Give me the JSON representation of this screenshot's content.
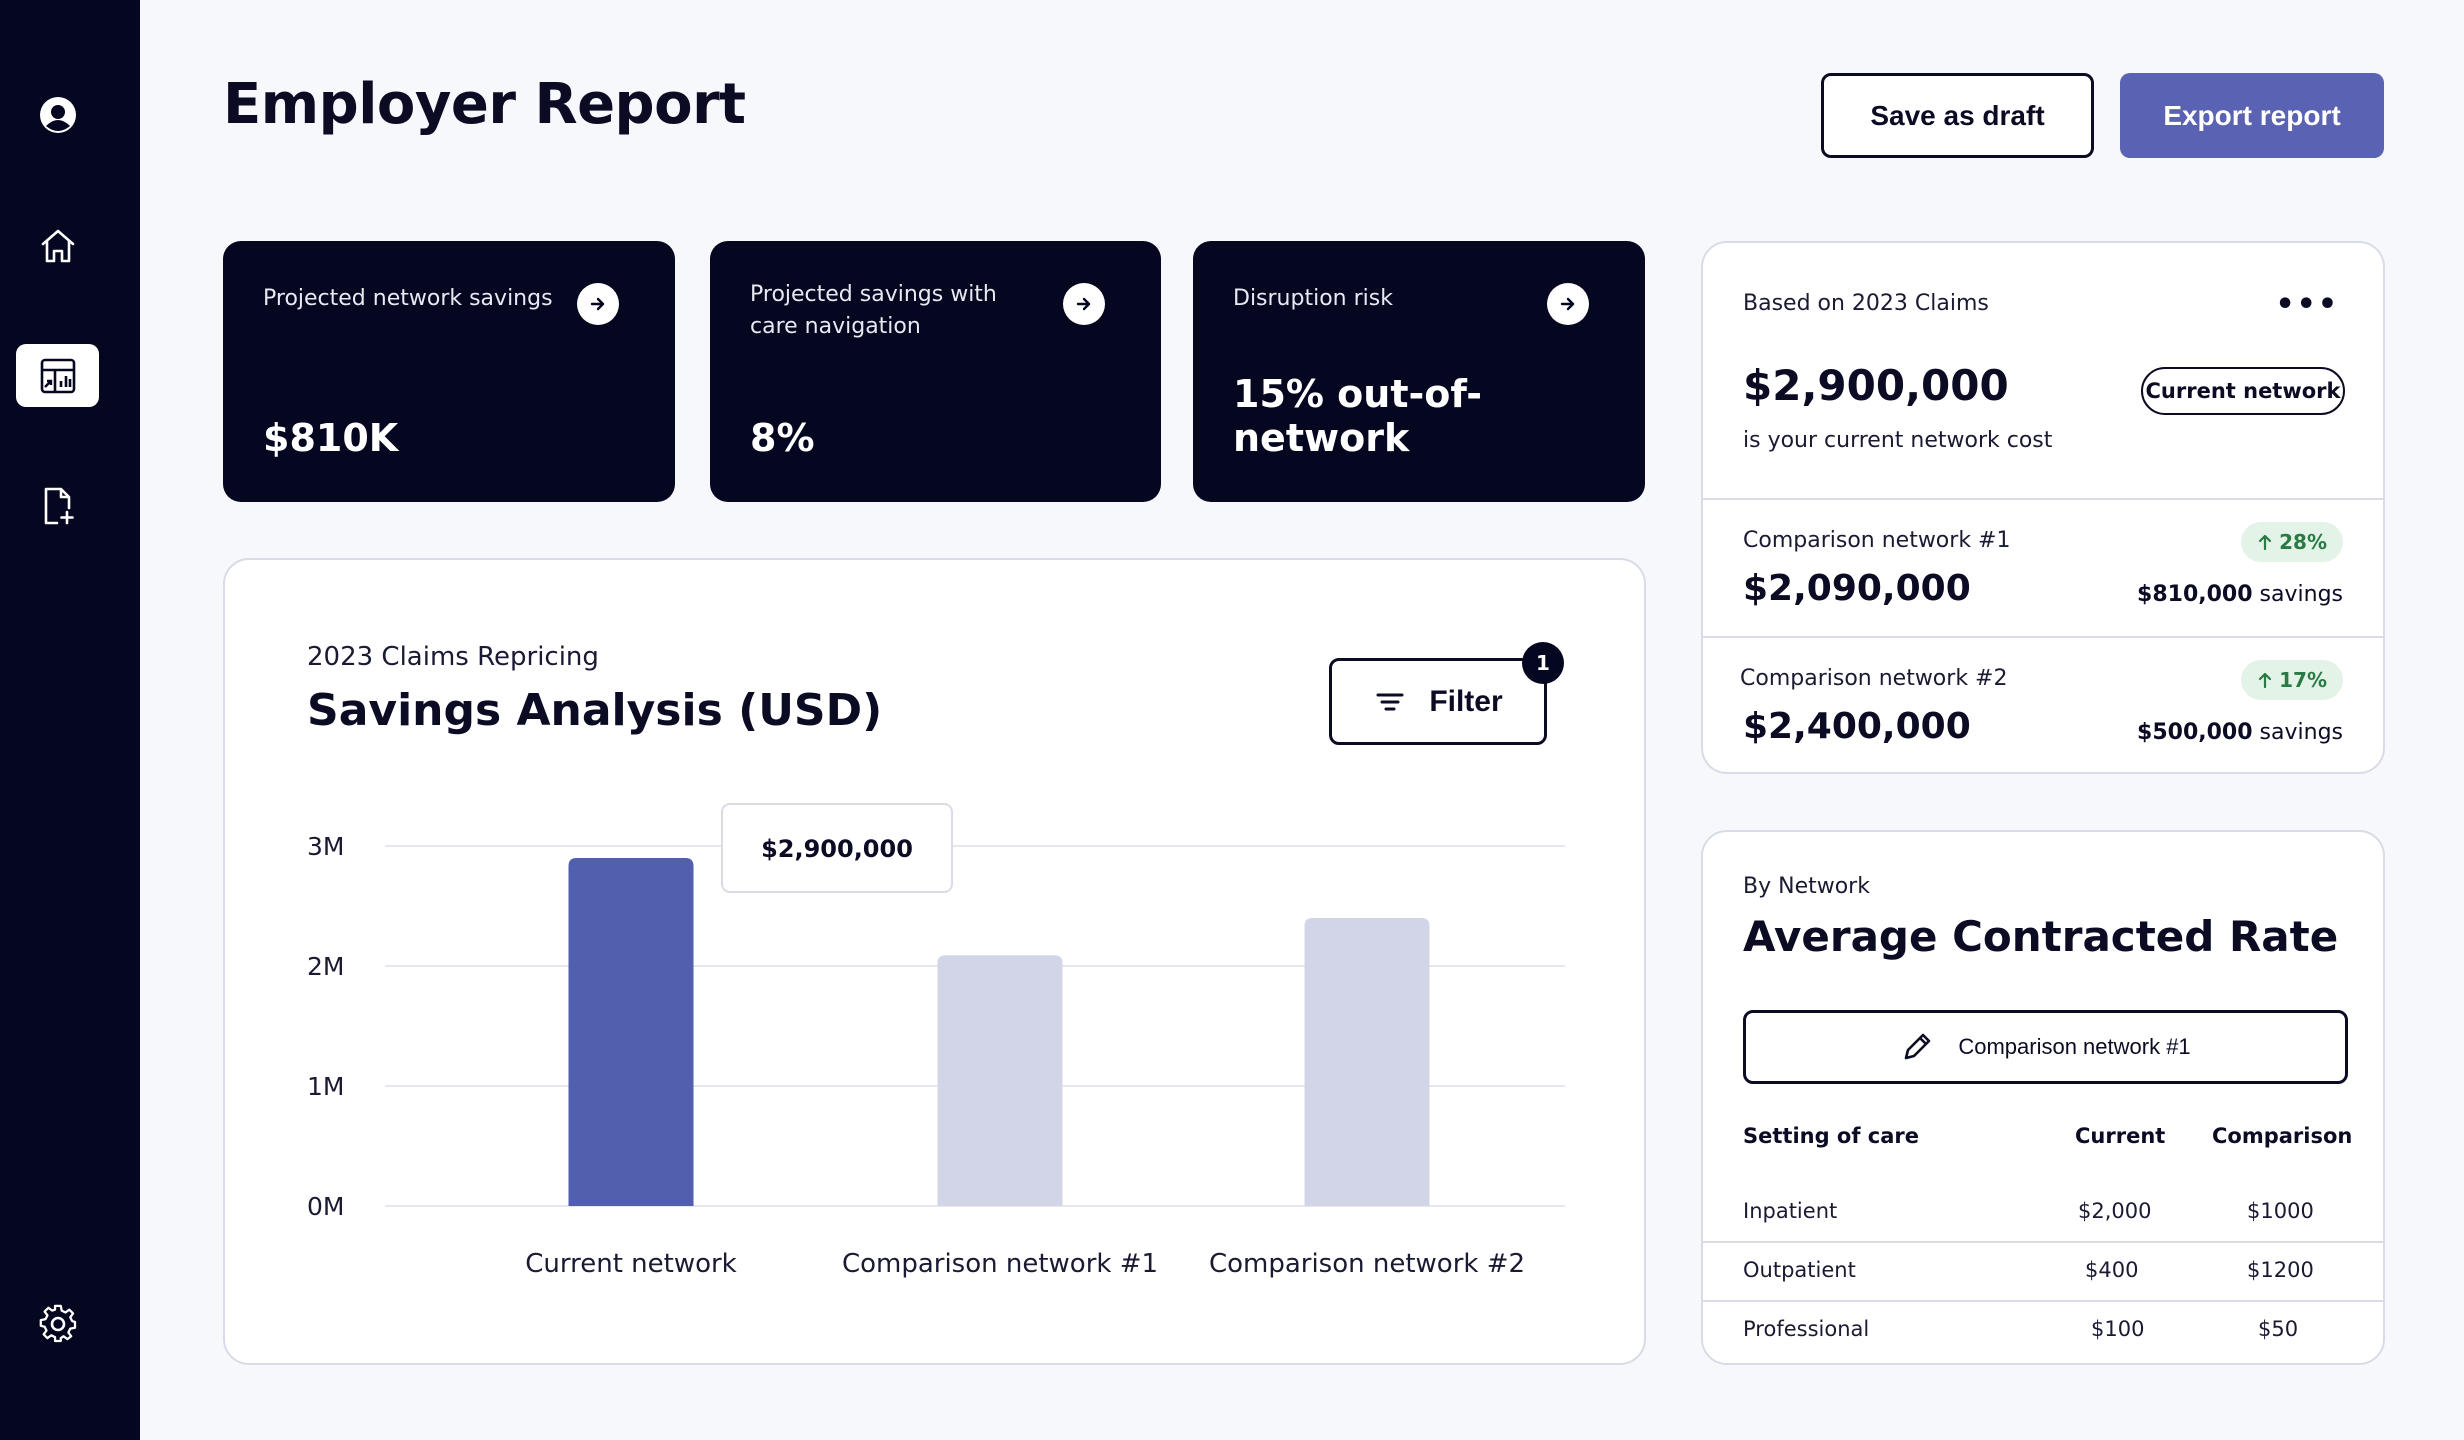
{
  "header": {
    "title": "Employer Report",
    "save_draft_label": "Save as draft",
    "export_label": "Export report"
  },
  "sidebar": {
    "items": [
      {
        "icon": "user-icon",
        "active": false
      },
      {
        "icon": "home-icon",
        "active": false
      },
      {
        "icon": "report-icon",
        "active": true
      },
      {
        "icon": "add-file-icon",
        "active": false
      },
      {
        "icon": "gear-icon",
        "active": false
      }
    ]
  },
  "kpis": [
    {
      "label": "Projected network savings",
      "value": "$810K"
    },
    {
      "label": "Projected savings with care navigation",
      "value": "8%"
    },
    {
      "label": "Disruption risk",
      "value": "15% out-of-network"
    }
  ],
  "chart_card": {
    "subtitle": "2023 Claims Repricing",
    "title": "Savings Analysis (USD)",
    "filter_label": "Filter",
    "filter_count": "1",
    "tooltip": "$2,900,000"
  },
  "chart_data": {
    "type": "bar",
    "categories": [
      "Current network",
      "Comparison network #1",
      "Comparison network #2"
    ],
    "values": [
      2900000,
      2090000,
      2400000
    ],
    "highlighted_index": 0,
    "y_ticks": [
      "0M",
      "1M",
      "2M",
      "3M"
    ],
    "ylim": [
      0,
      3000000
    ],
    "title": "Savings Analysis (USD)",
    "grid": true,
    "colors": {
      "highlight": "#525eae",
      "muted": "#d2d5e8",
      "grid": "#e6e7ef"
    }
  },
  "cost_card": {
    "label": "Based on 2023 Claims",
    "menu": "•••",
    "value": "$2,900,000",
    "note": "is your current network cost",
    "pill": "Current network",
    "comparisons": [
      {
        "label": "Comparison network #1",
        "value": "$2,090,000",
        "badge": "28%",
        "savings_amount": "$810,000",
        "savings_word": "savings"
      },
      {
        "label": "Comparison network #2",
        "value": "$2,400,000",
        "badge": "17%",
        "savings_amount": "$500,000",
        "savings_word": "savings"
      }
    ]
  },
  "rate_card": {
    "subtitle": "By Network",
    "title": "Average Contracted Rate",
    "selector": "Comparison network #1",
    "headers": [
      "Setting of care",
      "Current",
      "Comparison"
    ],
    "rows": [
      {
        "setting": "Inpatient",
        "current": "$2,000",
        "comparison": "$1000"
      },
      {
        "setting": "Outpatient",
        "current": "$400",
        "comparison": "$1200"
      },
      {
        "setting": "Professional",
        "current": "$100",
        "comparison": "$50"
      }
    ]
  },
  "colors": {
    "sidebar_bg": "#05061f",
    "accent": "#5a62b3",
    "badge_green_bg": "#e4f3e8",
    "badge_green_text": "#2a7a43"
  }
}
